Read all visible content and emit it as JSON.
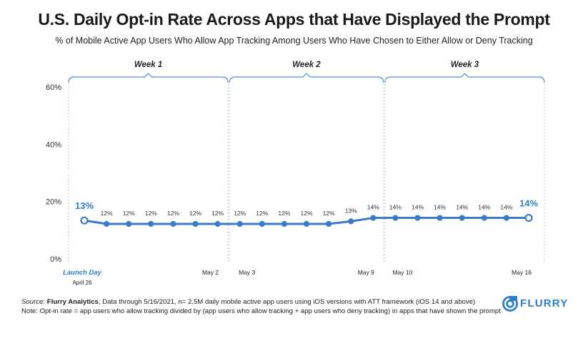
{
  "title": "U.S. Daily Opt-in Rate Across Apps that Have Displayed the Prompt",
  "subtitle": "% of Mobile Active App Users Who Allow App Tracking Among Users Who Have Chosen to Either Allow or Deny Tracking",
  "footer": {
    "source_prefix": "Source: ",
    "source_name": "Flurry Analytics",
    "source_rest": ", Data through 5/16/2021, n= 2.5M daily mobile active app users using iOS versions with ATT framework (iOS 14 and above)",
    "note": "Note: Opt-in rate = app users who allow tracking divided by (app users who allow tracking + app users who deny tracking) in apps that have shown the prompt"
  },
  "logo": {
    "text": "FLURRY",
    "icon": "flurry-swirl-icon"
  },
  "colors": {
    "line": "#3b7cc4",
    "accent": "#2e7fc7",
    "bracket": "#4a90d9"
  },
  "chart_data": {
    "type": "line",
    "ylim": [
      0,
      60
    ],
    "yticks": [
      "0%",
      "20%",
      "40%",
      "60%"
    ],
    "ytick_values": [
      0,
      20,
      40,
      60
    ],
    "weeks": [
      {
        "label": "Week 1",
        "start": 0,
        "end": 6
      },
      {
        "label": "Week 2",
        "start": 7,
        "end": 13
      },
      {
        "label": "Week 3",
        "start": 14,
        "end": 20
      }
    ],
    "x_labels": [
      {
        "index": 0,
        "text": "Launch Day",
        "sub": "April 26"
      },
      {
        "index": 6,
        "text": "May 2"
      },
      {
        "index": 7,
        "text": "May 3"
      },
      {
        "index": 13,
        "text": "May 9"
      },
      {
        "index": 14,
        "text": "May 10"
      },
      {
        "index": 20,
        "text": "May 16"
      }
    ],
    "values": [
      13.4,
      12.2,
      12.2,
      12.2,
      12.2,
      12.2,
      12.2,
      12.2,
      12.2,
      12.2,
      12.2,
      12.2,
      13.1,
      14.3,
      14.3,
      14.3,
      14.3,
      14.3,
      14.3,
      14.3,
      14.3
    ],
    "data_labels": [
      "13%",
      "12%",
      "12%",
      "12%",
      "12%",
      "12%",
      "12%",
      "12%",
      "12%",
      "12%",
      "12%",
      "12%",
      "13%",
      "14%",
      "14%",
      "14%",
      "14%",
      "14%",
      "14%",
      "14%",
      "14%"
    ]
  }
}
